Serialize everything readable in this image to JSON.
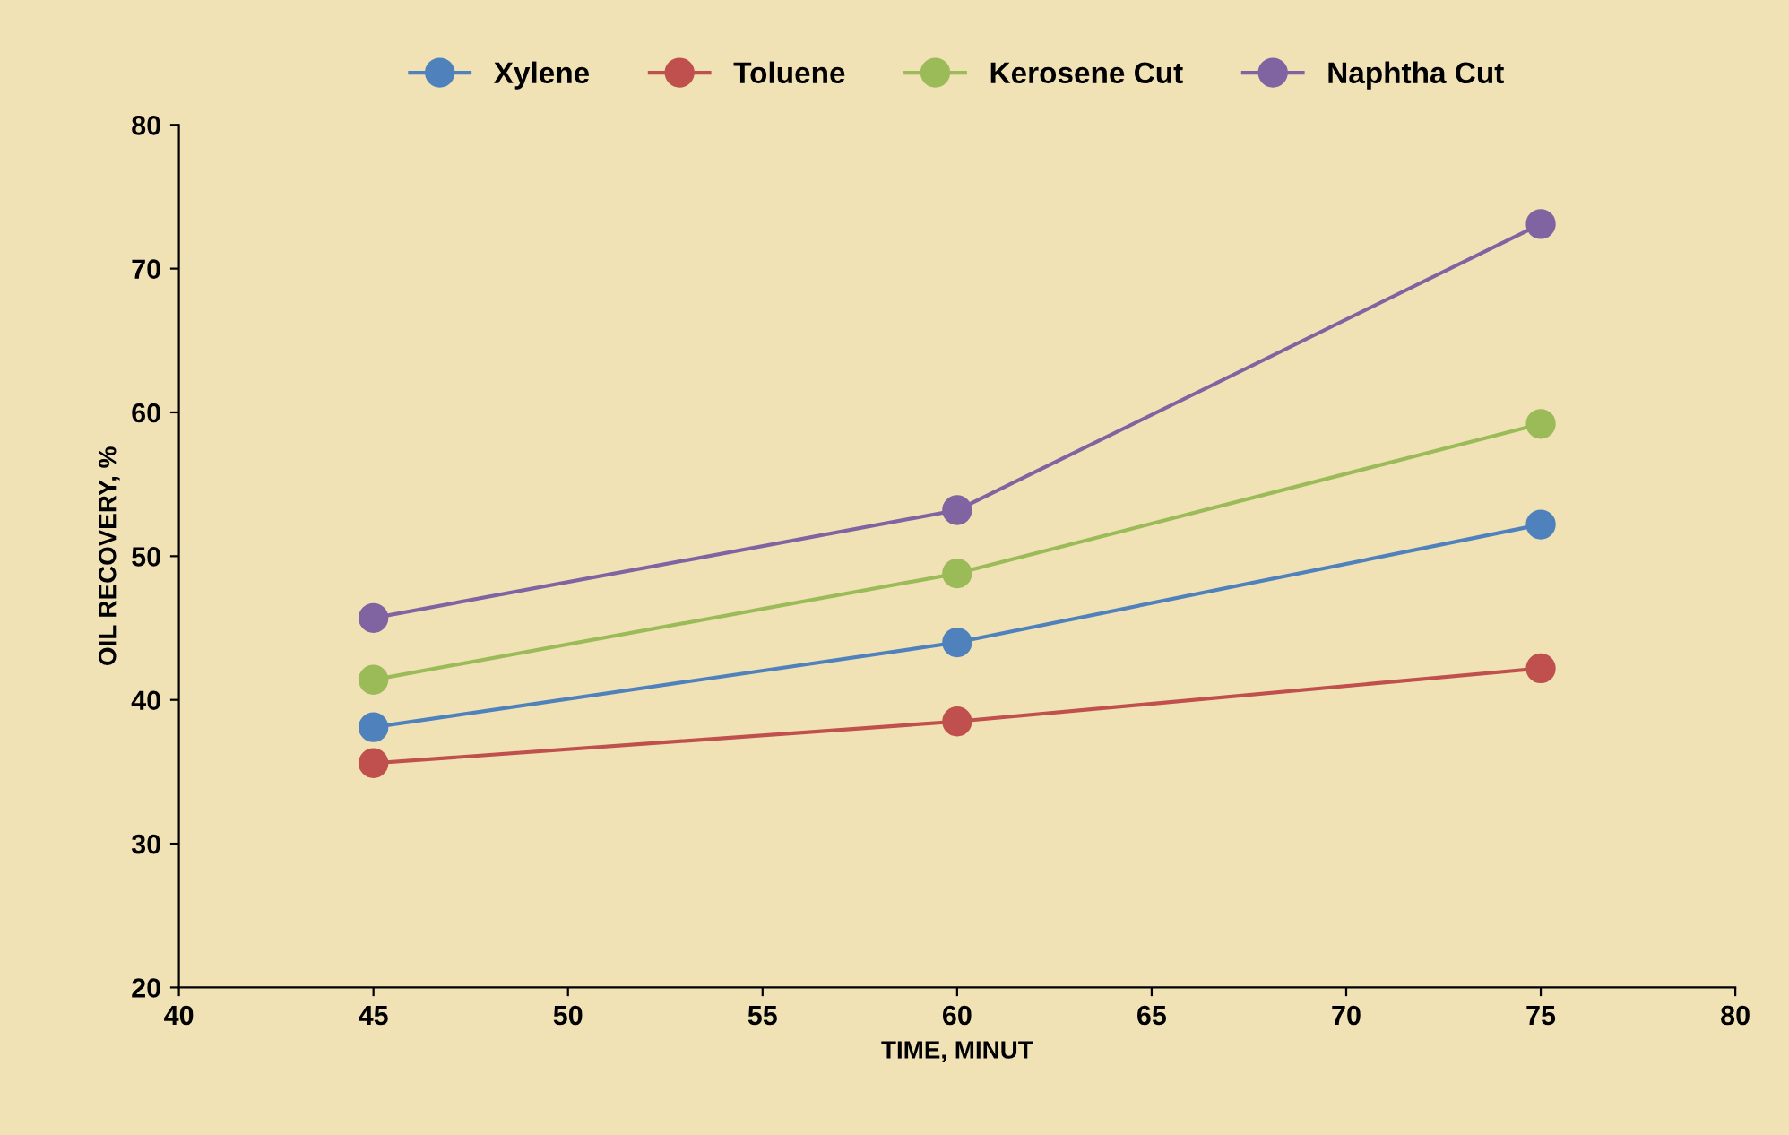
{
  "chart_data": {
    "type": "line",
    "xlabel": "TIME, MINUT",
    "ylabel": "OIL RECOVERY, %",
    "x": [
      45,
      60,
      75
    ],
    "series": [
      {
        "name": "Xylene",
        "color": "#4f81bd",
        "values": [
          38.1,
          44.0,
          52.2
        ]
      },
      {
        "name": "Toluene",
        "color": "#c0504d",
        "values": [
          35.6,
          38.5,
          42.2
        ]
      },
      {
        "name": "Kerosene Cut",
        "color": "#9bbb59",
        "values": [
          41.4,
          48.8,
          59.2
        ]
      },
      {
        "name": "Naphtha Cut",
        "color": "#8064a2",
        "values": [
          45.7,
          53.2,
          73.1
        ]
      }
    ],
    "xlim": [
      40,
      80
    ],
    "xticks": [
      40,
      45,
      50,
      55,
      60,
      65,
      70,
      75,
      80
    ],
    "ylim": [
      20,
      80
    ],
    "yticks": [
      20,
      30,
      40,
      50,
      60,
      70,
      80
    ],
    "grid": false,
    "legend": "top",
    "marker": "circle",
    "line_style": "solid"
  }
}
